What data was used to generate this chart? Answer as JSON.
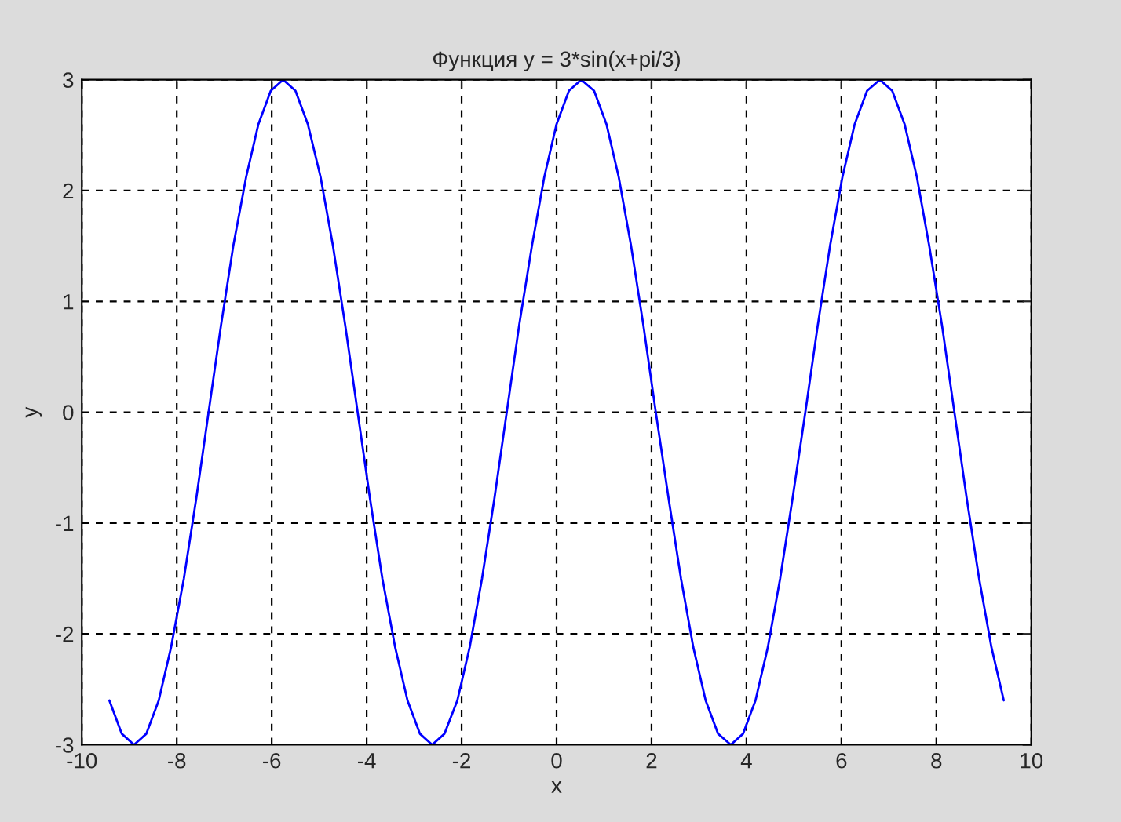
{
  "chart_data": {
    "type": "line",
    "title": "Функция y = 3*sin(x+pi/3)",
    "xlabel": "x",
    "ylabel": "y",
    "series": [
      {
        "color": "#0000ff",
        "x": [
          -9.42,
          -9.16,
          -8.9,
          -8.64,
          -8.38,
          -8.12,
          -7.85,
          -7.59,
          -7.33,
          -7.07,
          -6.81,
          -6.54,
          -6.28,
          -6.02,
          -5.76,
          -5.5,
          -5.24,
          -4.97,
          -4.71,
          -4.45,
          -4.19,
          -3.93,
          -3.67,
          -3.4,
          -3.14,
          -2.88,
          -2.62,
          -2.36,
          -2.09,
          -1.83,
          -1.57,
          -1.31,
          -1.05,
          -0.79,
          -0.52,
          -0.26,
          0,
          0.26,
          0.52,
          0.79,
          1.05,
          1.31,
          1.57,
          1.83,
          2.09,
          2.36,
          2.62,
          2.88,
          3.14,
          3.4,
          3.67,
          3.93,
          4.19,
          4.45,
          4.71,
          4.97,
          5.24,
          5.5,
          5.76,
          6.02,
          6.28,
          6.54,
          6.81,
          7.07,
          7.33,
          7.59,
          7.85,
          8.12,
          8.38,
          8.64,
          8.9,
          9.16,
          9.42
        ],
        "values": [
          -2.6,
          -2.9,
          -3,
          -2.9,
          -2.6,
          -2.12,
          -1.5,
          -0.78,
          0,
          0.78,
          1.5,
          2.12,
          2.6,
          2.9,
          3,
          2.9,
          2.6,
          2.12,
          1.5,
          0.78,
          0,
          -0.78,
          -1.5,
          -2.12,
          -2.6,
          -2.9,
          -3,
          -2.9,
          -2.6,
          -2.12,
          -1.5,
          -0.78,
          0,
          0.78,
          1.5,
          2.12,
          2.6,
          2.9,
          3,
          2.9,
          2.6,
          2.12,
          1.5,
          0.78,
          0,
          -0.78,
          -1.5,
          -2.12,
          -2.6,
          -2.9,
          -3,
          -2.9,
          -2.6,
          -2.12,
          -1.5,
          -0.78,
          0,
          0.78,
          1.5,
          2.12,
          2.6,
          2.9,
          3,
          2.9,
          2.6,
          2.12,
          1.5,
          0.78,
          0,
          -0.78,
          -1.5,
          -2.12,
          -2.6
        ]
      }
    ],
    "xlim": [
      -10,
      10
    ],
    "xticks": [
      -10,
      -8,
      -6,
      -4,
      -2,
      0,
      2,
      4,
      6,
      8,
      10
    ],
    "ylim": [
      -3,
      3
    ],
    "yticks": [
      -3,
      -2,
      -1,
      0,
      1,
      2,
      3
    ],
    "grid": true,
    "legend": false,
    "line_style": "solid"
  }
}
